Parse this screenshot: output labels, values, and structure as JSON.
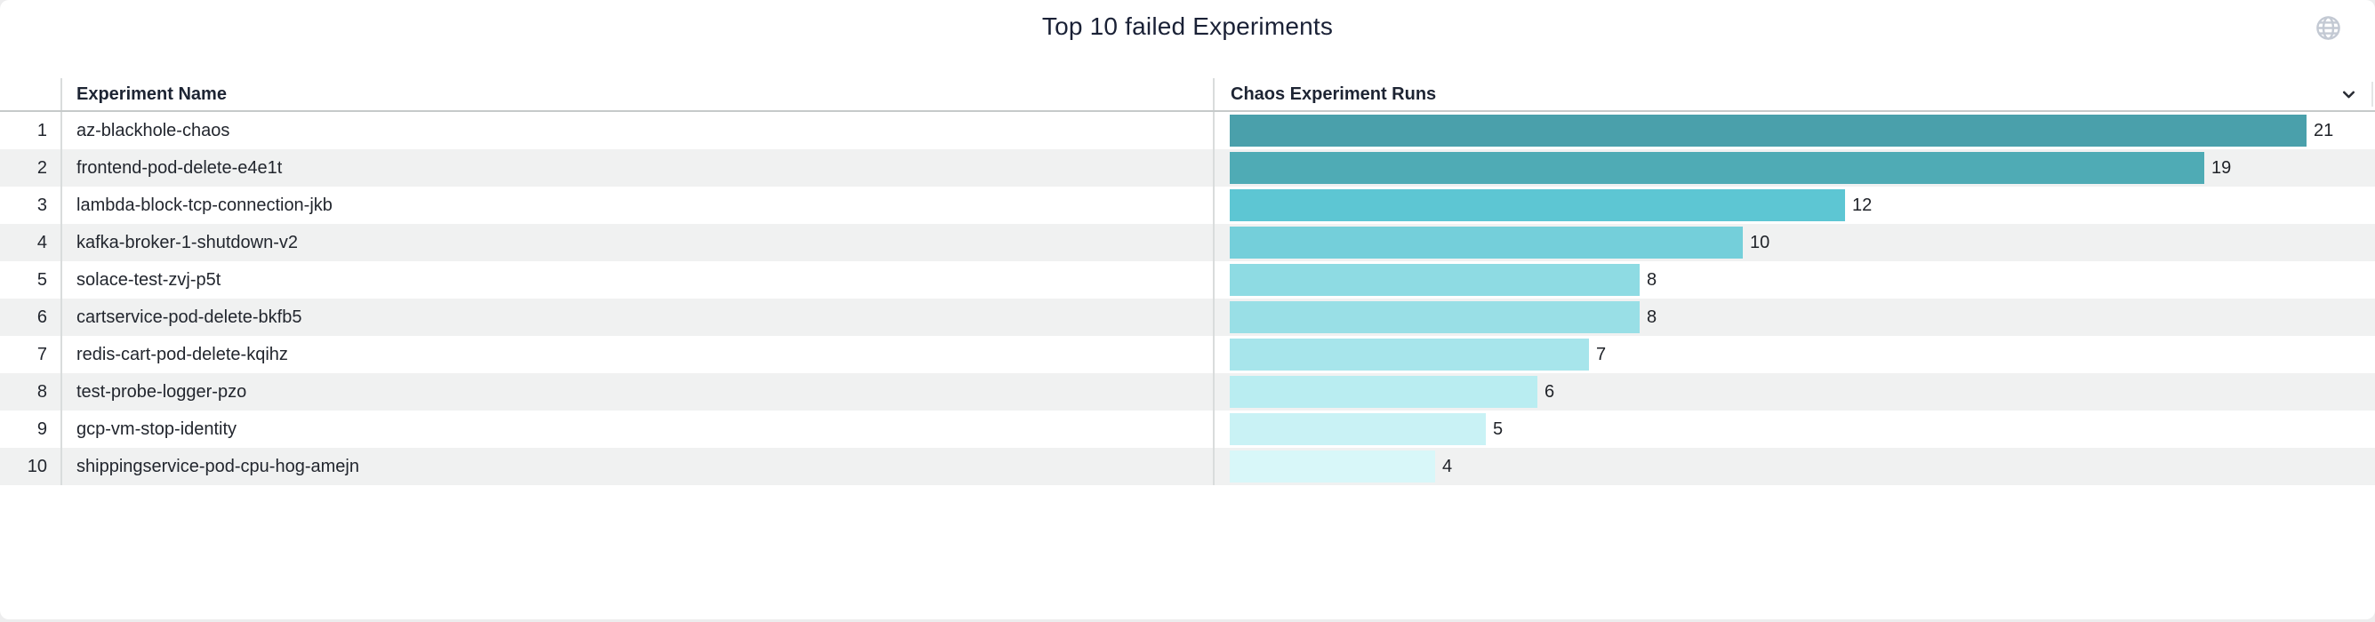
{
  "title": "Top 10 failed Experiments",
  "icons": {
    "globe": "globe-icon",
    "sort": "chevron-down-icon"
  },
  "table": {
    "columns": [
      {
        "label": "Experiment Name"
      },
      {
        "label": "Chaos Experiment Runs"
      }
    ],
    "rows": [
      {
        "rank": "1",
        "name": "az-blackhole-chaos",
        "runs": 21
      },
      {
        "rank": "2",
        "name": "frontend-pod-delete-e4e1t",
        "runs": 19
      },
      {
        "rank": "3",
        "name": "lambda-block-tcp-connection-jkb",
        "runs": 12
      },
      {
        "rank": "4",
        "name": "kafka-broker-1-shutdown-v2",
        "runs": 10
      },
      {
        "rank": "5",
        "name": "solace-test-zvj-p5t",
        "runs": 8
      },
      {
        "rank": "6",
        "name": "cartservice-pod-delete-bkfb5",
        "runs": 8
      },
      {
        "rank": "7",
        "name": "redis-cart-pod-delete-kqihz",
        "runs": 7
      },
      {
        "rank": "8",
        "name": "test-probe-logger-pzo",
        "runs": 6
      },
      {
        "rank": "9",
        "name": "gcp-vm-stop-identity",
        "runs": 5
      },
      {
        "rank": "10",
        "name": "shippingservice-pod-cpu-hog-amejn",
        "runs": 4
      }
    ]
  },
  "chart_data": {
    "type": "bar",
    "orientation": "horizontal",
    "title": "Top 10 failed Experiments",
    "categories": [
      "az-blackhole-chaos",
      "frontend-pod-delete-e4e1t",
      "lambda-block-tcp-connection-jkb",
      "kafka-broker-1-shutdown-v2",
      "solace-test-zvj-p5t",
      "cartservice-pod-delete-bkfb5",
      "redis-cart-pod-delete-kqihz",
      "test-probe-logger-pzo",
      "gcp-vm-stop-identity",
      "shippingservice-pod-cpu-hog-amejn"
    ],
    "values": [
      21,
      19,
      12,
      10,
      8,
      8,
      7,
      6,
      5,
      4
    ],
    "xlabel": "Chaos Experiment Runs",
    "ylabel": "Experiment Name",
    "xlim": [
      0,
      21
    ],
    "data_labels": true,
    "grid": false,
    "legend": false
  },
  "colors": {
    "accent_bars": [
      "#4aa0ab",
      "#4fabb5",
      "#5dc6d3",
      "#74cfda",
      "#8edbe3",
      "#99dfe6",
      "#a7e5eb",
      "#b9edf1",
      "#c9f2f5",
      "#d8f7f9"
    ],
    "row_stripe": "#f0f1f1",
    "header_divider": "#c6caca",
    "column_divider": "#d9dcdc",
    "title_text": "#1a2136",
    "body_text": "#22262e",
    "globe_icon": "#c3c9d3",
    "chevron_icon": "#272b33"
  }
}
